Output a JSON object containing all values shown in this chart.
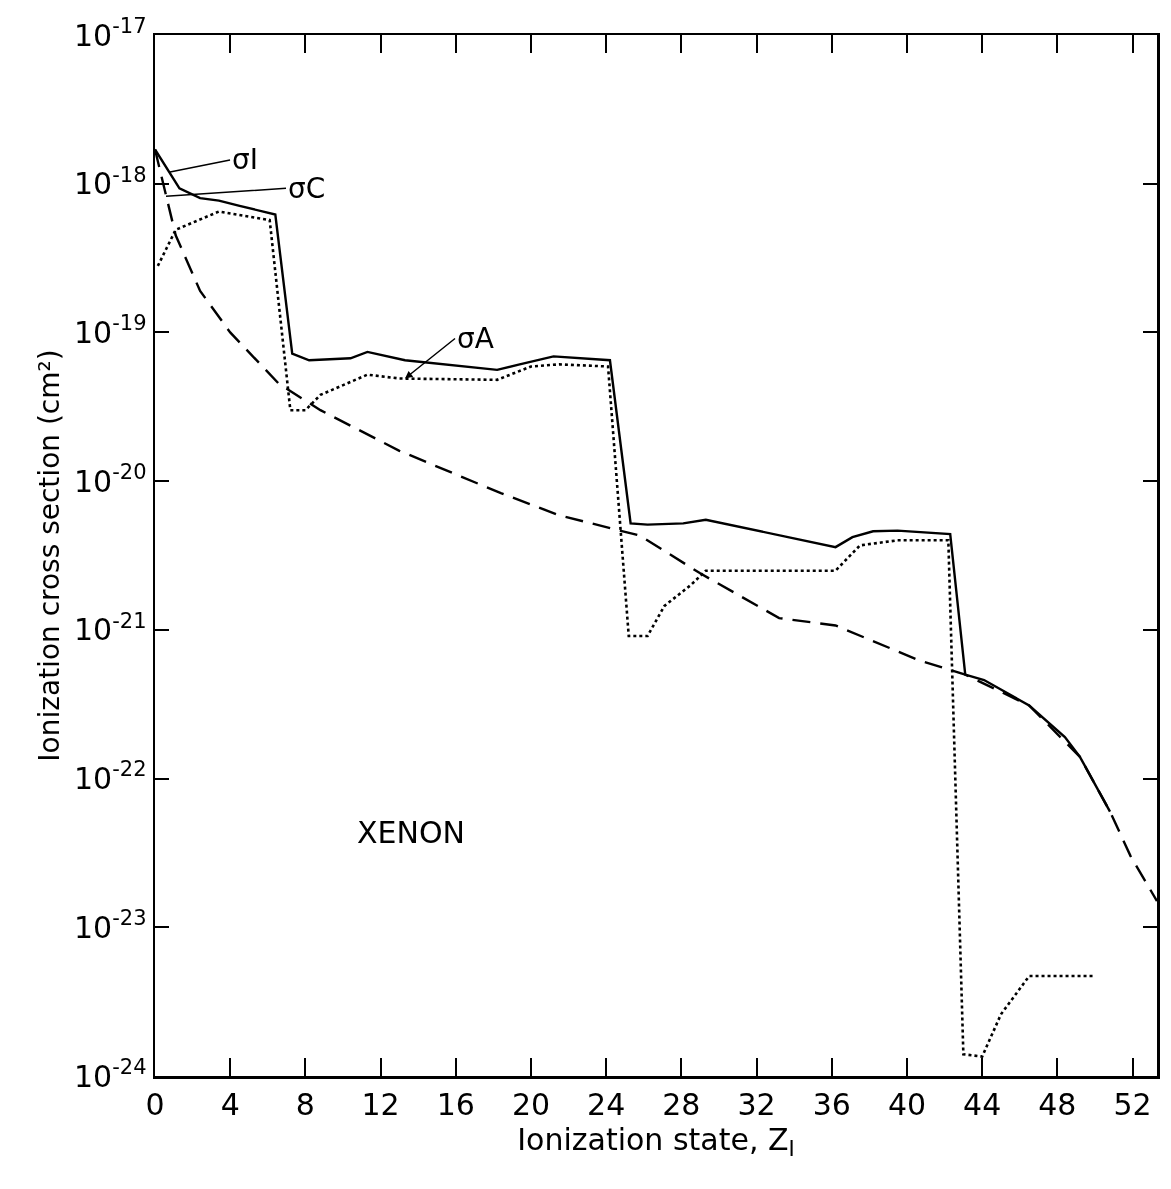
{
  "chart_data": {
    "type": "line",
    "xlabel": "Ionization state, Z$_{I}$",
    "ylabel": "Ionization cross section (cm²)",
    "log": "y",
    "grid": false,
    "marker": "none",
    "xlim": [
      0,
      53.3
    ],
    "xticks": [
      0,
      4,
      8,
      12,
      16,
      20,
      24,
      28,
      32,
      36,
      40,
      44,
      48,
      52
    ],
    "ylim": [
      1e-24,
      1e-17
    ],
    "yticks": [
      {
        "value": 1e-24,
        "label": "10$^{-24}$"
      },
      {
        "value": 1e-23,
        "label": "10$^{-23}$"
      },
      {
        "value": 1e-22,
        "label": "10$^{-22}$"
      },
      {
        "value": 1e-21,
        "label": "10$^{-21}$"
      },
      {
        "value": 1e-20,
        "label": "10$^{-20}$"
      },
      {
        "value": 1e-19,
        "label": "10$^{-19}$"
      },
      {
        "value": 1e-18,
        "label": "10$^{-18}$"
      },
      {
        "value": 1e-17,
        "label": "10$^{-17}$"
      }
    ],
    "series": [
      {
        "color": "#000000",
        "line_style": "solid",
        "x": [
          0,
          1.3,
          2.4,
          3.4,
          4.5,
          6.4,
          7.3,
          8.2,
          10.4,
          11.3,
          13.3,
          18.2,
          19.4,
          21.2,
          24.2,
          25.3,
          26.2,
          28.1,
          29.3,
          36.2,
          37.1,
          38.2,
          39.5,
          42.3,
          43.1,
          44.1,
          46.5,
          48.4,
          49.2,
          50.8
        ],
        "values": [
          1.7e-18,
          9.3e-19,
          8e-19,
          7.7e-19,
          7.1e-19,
          6.2e-19,
          7.2e-20,
          6.5e-20,
          6.7e-20,
          7.4e-20,
          6.5e-20,
          5.6e-20,
          6.1e-20,
          6.9e-20,
          6.5e-20,
          5.2e-21,
          5.1e-21,
          5.2e-21,
          5.5e-21,
          3.6e-21,
          4.2e-21,
          4.6e-21,
          4.65e-21,
          4.4e-21,
          5e-22,
          4.6e-22,
          3.1e-22,
          1.9e-22,
          1.4e-22,
          6e-23
        ]
      },
      {
        "color": "#000000",
        "line_style": "dashed",
        "x": [
          0,
          1.1,
          2.4,
          4,
          6.6,
          8.8,
          13,
          18.4,
          21.5,
          25.8,
          29,
          33.2,
          36.2,
          40.7,
          43.1,
          46.5,
          49.2,
          50.8,
          51.9,
          53.3
        ],
        "values": [
          1.7e-18,
          4.5e-19,
          1.9e-19,
          1e-19,
          4.5e-20,
          3e-20,
          1.6e-20,
          8.3e-21,
          5.9e-21,
          4.3e-21,
          2.4e-21,
          1.2e-21,
          1.07e-21,
          6.2e-22,
          5e-22,
          3.1e-22,
          1.4e-22,
          6e-23,
          3e-23,
          1.5e-23
        ]
      },
      {
        "color": "#000000",
        "line_style": "dotted",
        "x": [
          0.15,
          1.1,
          3.4,
          6.1,
          7.2,
          8,
          8.8,
          11.3,
          13,
          18.2,
          20,
          21.5,
          24.1,
          25.2,
          26.2,
          27.1,
          28.5,
          29.3,
          36.2,
          37.5,
          39.5,
          42.2,
          43,
          44,
          45,
          46.5,
          47.3,
          50
        ],
        "values": [
          2.8e-19,
          4.9e-19,
          6.5e-19,
          5.7e-19,
          3e-20,
          3e-20,
          3.8e-20,
          5.2e-20,
          4.9e-20,
          4.8e-20,
          5.9e-20,
          6.1e-20,
          5.9e-20,
          9.1e-22,
          9.1e-22,
          1.45e-21,
          2e-21,
          2.5e-21,
          2.5e-21,
          3.7e-21,
          4e-21,
          4e-21,
          1.4e-24,
          1.35e-24,
          2.6e-24,
          4.7e-24,
          4.7e-24,
          4.7e-24
        ]
      }
    ],
    "annotations": [
      {
        "text": "σI",
        "x": 0.8,
        "y": 1.2e-18
      },
      "σC",
      {
        "text": "σA",
        "x": 13.3,
        "y": 4.9e-20
      },
      "XENON"
    ]
  }
}
